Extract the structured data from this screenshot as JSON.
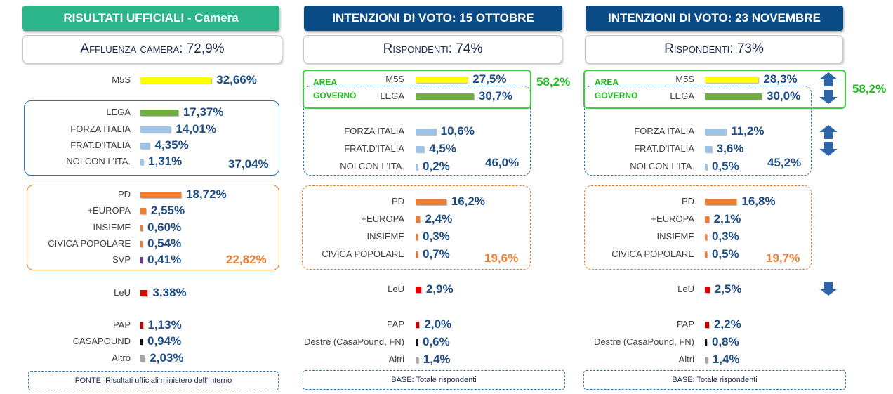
{
  "colors": {
    "m5s": "#ffff00",
    "lega": "#70ad47",
    "cdx": "#9dc3e6",
    "csx": "#ed7d31",
    "leu": "#e00000",
    "pap": "#c00000",
    "destra": "#111111",
    "altro": "#a6a6a6",
    "svp": "#7030a0"
  },
  "panels": [
    {
      "header": "RISULTATI UFFICIALI - Camera",
      "subtitle": "Affluenza camera: 72,9%",
      "footer": "FONTE: Risultati ufficiali ministero dell’Interno",
      "rows": [
        {
          "label": "M5S",
          "value": "32,66%"
        },
        {
          "label": "LEGA",
          "value": "17,37%"
        },
        {
          "label": "FORZA ITALIA",
          "value": "14,01%"
        },
        {
          "label": "FRAT.D'ITALIA",
          "value": "4,35%"
        },
        {
          "label": "NOI CON L'ITA.",
          "value": "1,31%"
        },
        {
          "label": "PD",
          "value": "18,72%"
        },
        {
          "label": "+EUROPA",
          "value": "2,55%"
        },
        {
          "label": "INSIEME",
          "value": "0,60%"
        },
        {
          "label": "CIVICA POPOLARE",
          "value": "0,54%"
        },
        {
          "label": "SVP",
          "value": "0,41%"
        },
        {
          "label": "LeU",
          "value": "3,38%"
        },
        {
          "label": "PAP",
          "value": "1,13%"
        },
        {
          "label": "CASAPOUND",
          "value": "0,94%"
        },
        {
          "label": "Altro",
          "value": "2,03%"
        }
      ],
      "totals": {
        "cdx": "37,04%",
        "csx": "22,82%"
      }
    },
    {
      "header": "INTENZIONI DI VOTO: 15 OTTOBRE",
      "subtitle": "Rispondenti: 74%",
      "footer": "BASE: Totale rispondenti",
      "area_label": [
        "AREA",
        "GOVERNO"
      ],
      "rows": [
        {
          "label": "M5S",
          "value": "27,5%"
        },
        {
          "label": "LEGA",
          "value": "30,7%"
        },
        {
          "label": "FORZA ITALIA",
          "value": "10,6%"
        },
        {
          "label": "FRAT.D'ITALIA",
          "value": "4,5%"
        },
        {
          "label": "NOI CON L'ITA.",
          "value": "0,2%"
        },
        {
          "label": "PD",
          "value": "16,2%"
        },
        {
          "label": "+EUROPA",
          "value": "2,4%"
        },
        {
          "label": "INSIEME",
          "value": "0,3%"
        },
        {
          "label": "CIVICA POPOLARE",
          "value": "0,7%"
        },
        {
          "label": "LeU",
          "value": "2,9%"
        },
        {
          "label": "PAP",
          "value": "2,0%"
        },
        {
          "label": "Destre (CasaPound, FN)",
          "value": "0,6%"
        },
        {
          "label": "Altri",
          "value": "1,4%"
        }
      ],
      "totals": {
        "area": "58,2%",
        "cdx": "46,0%",
        "csx": "19,6%"
      }
    },
    {
      "header": "INTENZIONI DI VOTO: 23 NOVEMBRE",
      "subtitle": "Rispondenti: 73%",
      "footer": "BASE: Totale rispondenti",
      "area_label": [
        "AREA",
        "GOVERNO"
      ],
      "rows": [
        {
          "label": "M5S",
          "value": "28,3%"
        },
        {
          "label": "LEGA",
          "value": "30,0%"
        },
        {
          "label": "FORZA ITALIA",
          "value": "11,2%"
        },
        {
          "label": "FRAT.D'ITALIA",
          "value": "3,6%"
        },
        {
          "label": "NOI CON L'ITA.",
          "value": "0,5%"
        },
        {
          "label": "PD",
          "value": "16,8%"
        },
        {
          "label": "+EUROPA",
          "value": "2,1%"
        },
        {
          "label": "INSIEME",
          "value": "0,3%"
        },
        {
          "label": "CIVICA POPOLARE",
          "value": "0,5%"
        },
        {
          "label": "LeU",
          "value": "2,5%"
        },
        {
          "label": "PAP",
          "value": "2,2%"
        },
        {
          "label": "Destre (CasaPound, FN)",
          "value": "0,8%"
        },
        {
          "label": "Altri",
          "value": "1,4%"
        }
      ],
      "totals": {
        "area": "58,2%",
        "cdx": "45,2%",
        "csx": "19,7%"
      },
      "trend_arrows": {
        "M5S": "up",
        "LEGA": "down",
        "FORZA ITALIA": "up",
        "FRAT.D'ITALIA": "down",
        "LeU": "down"
      }
    }
  ],
  "chart_data": [
    {
      "type": "bar",
      "title": "RISULTATI UFFICIALI - Camera",
      "categories": [
        "M5S",
        "LEGA",
        "FORZA ITALIA",
        "FRAT.D'ITALIA",
        "NOI CON L'ITA.",
        "PD",
        "+EUROPA",
        "INSIEME",
        "CIVICA POPOLARE",
        "SVP",
        "LeU",
        "PAP",
        "CASAPOUND",
        "Altro"
      ],
      "values": [
        32.66,
        17.37,
        14.01,
        4.35,
        1.31,
        18.72,
        2.55,
        0.6,
        0.54,
        0.41,
        3.38,
        1.13,
        0.94,
        2.03
      ]
    },
    {
      "type": "bar",
      "title": "INTENZIONI DI VOTO: 15 OTTOBRE",
      "categories": [
        "M5S",
        "LEGA",
        "FORZA ITALIA",
        "FRAT.D'ITALIA",
        "NOI CON L'ITA.",
        "PD",
        "+EUROPA",
        "INSIEME",
        "CIVICA POPOLARE",
        "LeU",
        "PAP",
        "Destre (CasaPound, FN)",
        "Altri"
      ],
      "values": [
        27.5,
        30.7,
        10.6,
        4.5,
        0.2,
        16.2,
        2.4,
        0.3,
        0.7,
        2.9,
        2.0,
        0.6,
        1.4
      ]
    },
    {
      "type": "bar",
      "title": "INTENZIONI DI VOTO: 23 NOVEMBRE",
      "categories": [
        "M5S",
        "LEGA",
        "FORZA ITALIA",
        "FRAT.D'ITALIA",
        "NOI CON L'ITA.",
        "PD",
        "+EUROPA",
        "INSIEME",
        "CIVICA POPOLARE",
        "LeU",
        "PAP",
        "Destre (CasaPound, FN)",
        "Altri"
      ],
      "values": [
        28.3,
        30.0,
        11.2,
        3.6,
        0.5,
        16.8,
        2.1,
        0.3,
        0.5,
        2.5,
        2.2,
        0.8,
        1.4
      ]
    }
  ]
}
